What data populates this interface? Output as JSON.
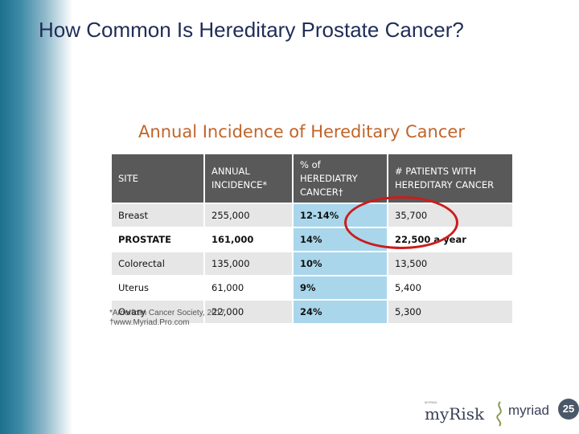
{
  "title": "How Common Is Hereditary Prostate Cancer?",
  "table_title": "Annual Incidence of Hereditary Cancer",
  "table": {
    "headers": [
      "SITE",
      "ANNUAL INCIDENCE*",
      "% of HEREDIATRY CANCER†",
      "# PATIENTS WITH HEREDITARY CANCER"
    ],
    "rows": [
      [
        "Breast",
        "255,000",
        "12-14%",
        "35,700"
      ],
      [
        "PROSTATE",
        "161,000",
        "14%",
        "22,500 a year"
      ],
      [
        "Colorectal",
        "135,000",
        "10%",
        "13,500"
      ],
      [
        "Uterus",
        "61,000",
        "9%",
        "5,400"
      ],
      [
        "Ovary",
        "22,000",
        "24%",
        "5,300"
      ]
    ]
  },
  "footnotes": [
    "*American Cancer Society, 2017",
    "†www.Myriad.Pro.com"
  ],
  "logos": {
    "myrisk_top": "MYRIAD",
    "myrisk": "myRisk",
    "myriad": "myriad",
    "badge": "25"
  },
  "colors": {
    "title": "#1f2d57",
    "table_title": "#c0642a",
    "header_bg": "#595959",
    "highlight_col": "#a9d6ea",
    "circle": "#cc1c1c"
  }
}
